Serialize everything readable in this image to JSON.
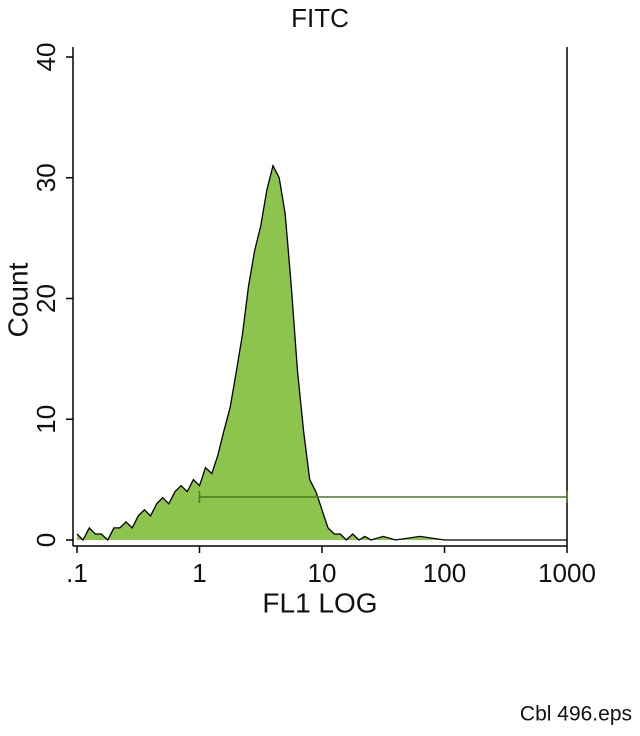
{
  "chart_data": {
    "type": "histogram",
    "title": "FITC",
    "xlabel": "FL1 LOG",
    "ylabel": "Count",
    "footnote": "Cbl 496.eps",
    "x": [
      0.1,
      0.112,
      0.126,
      0.141,
      0.158,
      0.178,
      0.2,
      0.224,
      0.251,
      0.282,
      0.316,
      0.355,
      0.398,
      0.447,
      0.501,
      0.562,
      0.631,
      0.708,
      0.794,
      0.891,
      1,
      1.12,
      1.26,
      1.41,
      1.58,
      1.78,
      2,
      2.24,
      2.51,
      2.82,
      3.16,
      3.55,
      3.98,
      4.47,
      5.01,
      5.62,
      6.31,
      7.08,
      7.94,
      8.91,
      10,
      11.2,
      12.6,
      14.1,
      15.8,
      17.8,
      20,
      22.4,
      25.1,
      31.6,
      39.8,
      63.1,
      100,
      1000
    ],
    "values": [
      0.5,
      0,
      1,
      0.5,
      0.5,
      0,
      1,
      1,
      1.5,
      1,
      2,
      2.5,
      2,
      3,
      3.5,
      3,
      4,
      4.5,
      4,
      5,
      4.5,
      6,
      5.5,
      7,
      9,
      11,
      14,
      17,
      21,
      24,
      26,
      29,
      31,
      30,
      27,
      21,
      14,
      9,
      5,
      4,
      2.5,
      1,
      0.5,
      0.5,
      0,
      0.5,
      0,
      0.3,
      0,
      0.3,
      0,
      0.3,
      0,
      0
    ],
    "color": "#8dc44e",
    "xscale": "log",
    "xlim": [
      0.1,
      1000
    ],
    "xticks": [
      {
        "value": 0.1,
        "label": ".1"
      },
      1,
      10,
      100,
      1000
    ],
    "ylim": [
      0,
      40
    ],
    "yticks": [
      0,
      10,
      20,
      30,
      40
    ],
    "gate": [
      1,
      1000
    ],
    "gate_color": "#4a7a1e"
  }
}
